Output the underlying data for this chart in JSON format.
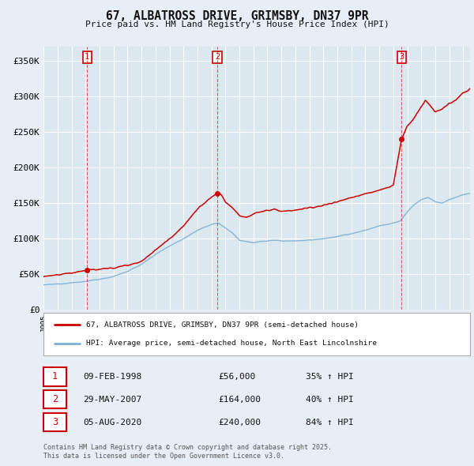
{
  "title": "67, ALBATROSS DRIVE, GRIMSBY, DN37 9PR",
  "subtitle": "Price paid vs. HM Land Registry's House Price Index (HPI)",
  "ylabel_ticks": [
    "£0",
    "£50K",
    "£100K",
    "£150K",
    "£200K",
    "£250K",
    "£300K",
    "£350K"
  ],
  "ytick_values": [
    0,
    50000,
    100000,
    150000,
    200000,
    250000,
    300000,
    350000
  ],
  "ylim": [
    0,
    370000
  ],
  "xlim_start": 1995.0,
  "xlim_end": 2025.5,
  "sale_color": "#cc0000",
  "hpi_color": "#7bafd4",
  "sale_label": "67, ALBATROSS DRIVE, GRIMSBY, DN37 9PR (semi-detached house)",
  "hpi_label": "HPI: Average price, semi-detached house, North East Lincolnshire",
  "transactions": [
    {
      "num": 1,
      "date_num": 1998.11,
      "price": 56000,
      "date_str": "09-FEB-1998",
      "pct": "35%",
      "dir": "↑"
    },
    {
      "num": 2,
      "date_num": 2007.41,
      "price": 164000,
      "date_str": "29-MAY-2007",
      "pct": "40%",
      "dir": "↑"
    },
    {
      "num": 3,
      "date_num": 2020.59,
      "price": 240000,
      "date_str": "05-AUG-2020",
      "pct": "84%",
      "dir": "↑"
    }
  ],
  "footer1": "Contains HM Land Registry data © Crown copyright and database right 2025.",
  "footer2": "This data is licensed under the Open Government Licence v3.0.",
  "background_color": "#e8eef5",
  "plot_bg_color": "#dce8f0"
}
